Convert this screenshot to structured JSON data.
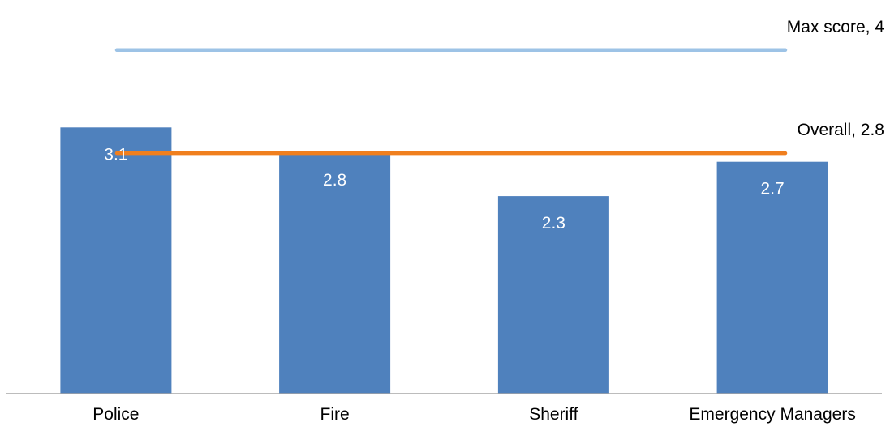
{
  "chart_data": {
    "type": "bar",
    "categories": [
      "Police",
      "Fire",
      "Sheriff",
      "Emergency Managers"
    ],
    "series": [
      {
        "values": [
          3.1,
          2.8,
          2.3,
          2.7
        ],
        "data_labels": [
          "3.1",
          "2.8",
          "2.3",
          "2.7"
        ],
        "color": "#4F81BD"
      }
    ],
    "reference_lines": [
      {
        "label": "Max score, 4",
        "value": 4,
        "color": "#9DC3E6"
      },
      {
        "label": "Overall, 2.8",
        "value": 2.8,
        "color": "#F07F1E"
      }
    ],
    "ylim": [
      0,
      4.3
    ],
    "grid": false,
    "legend": "none",
    "title": "",
    "xlabel": "",
    "ylabel": ""
  },
  "colors": {
    "bar": "#4F81BD",
    "axis": "#A6A6A6",
    "label_inside": "#FFFFFF",
    "text": "#000000"
  }
}
